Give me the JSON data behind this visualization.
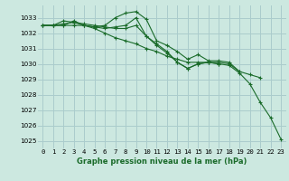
{
  "title": "Graphe pression niveau de la mer (hPa)",
  "bg_color": "#cce8e0",
  "grid_color": "#aacccc",
  "line_color": "#1a6b2a",
  "xlim": [
    -0.5,
    23.5
  ],
  "ylim": [
    1024.5,
    1033.8
  ],
  "yticks": [
    1025,
    1026,
    1027,
    1028,
    1029,
    1030,
    1031,
    1032,
    1033
  ],
  "xticks": [
    0,
    1,
    2,
    3,
    4,
    5,
    6,
    7,
    8,
    9,
    10,
    11,
    12,
    13,
    14,
    15,
    16,
    17,
    18,
    19,
    20,
    21,
    22,
    23
  ],
  "series": [
    [
      1032.5,
      1032.5,
      1032.5,
      1032.8,
      1032.5,
      1032.4,
      1032.3,
      1032.4,
      1032.5,
      1033.0,
      1031.8,
      1031.3,
      1030.8,
      1030.1,
      1029.7,
      1030.0,
      1030.1,
      1030.0,
      1029.9,
      1029.4,
      1028.7,
      1027.5,
      1026.5,
      1025.1
    ],
    [
      1032.5,
      1032.5,
      1032.8,
      1032.7,
      1032.5,
      1032.4,
      1032.5,
      1033.0,
      1033.3,
      1033.4,
      1032.9,
      1031.5,
      1031.2,
      1030.8,
      1030.3,
      1030.6,
      1030.2,
      1030.2,
      1030.1,
      1029.5,
      1029.3,
      1029.1,
      null,
      null
    ],
    [
      1032.5,
      1032.5,
      1032.5,
      1032.5,
      1032.5,
      1032.3,
      1032.0,
      1031.7,
      1031.5,
      1031.3,
      1031.0,
      1030.8,
      1030.5,
      1030.3,
      1030.1,
      1030.1,
      1030.1,
      1030.0,
      null,
      null,
      null,
      null,
      null,
      null
    ],
    [
      1032.5,
      1032.5,
      1032.6,
      1032.7,
      1032.6,
      1032.5,
      1032.4,
      1032.3,
      1032.3,
      1032.5,
      1031.8,
      1031.2,
      1030.7,
      1030.1,
      1029.7,
      1030.0,
      1030.1,
      1030.1,
      1030.0,
      1029.5,
      null,
      null,
      null,
      null
    ]
  ],
  "title_fontsize": 6.5,
  "xlabel_fontsize": 6.0,
  "ylabel_fontsize": 6.0,
  "tick_fontsize": 5.2
}
